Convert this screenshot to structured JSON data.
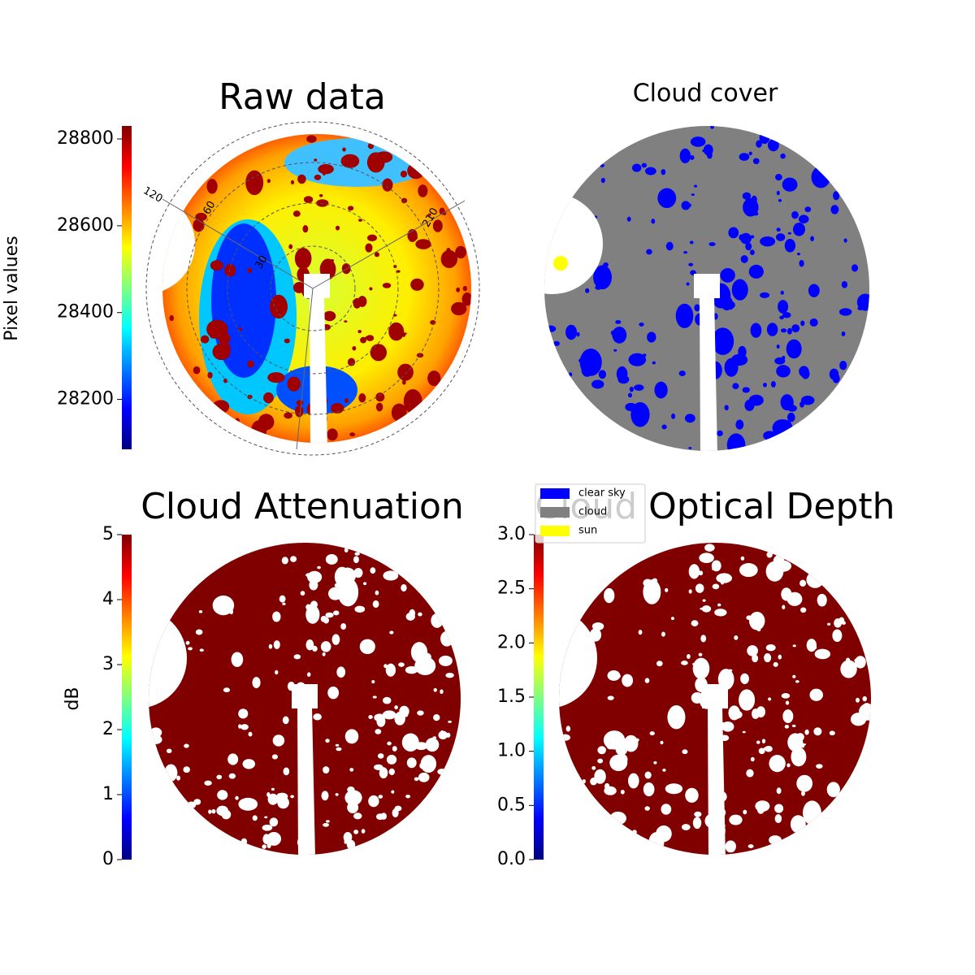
{
  "chart_data": [
    {
      "type": "image",
      "title": "Raw data",
      "colorbar_label": "Pixel values",
      "colormap": "jet",
      "ylim": [
        28085,
        28830
      ],
      "yticks": [
        28200,
        28400,
        28600,
        28800
      ],
      "polar_labels": [
        "120",
        "60",
        "30",
        "210"
      ]
    },
    {
      "type": "image",
      "title": "Cloud cover",
      "legend": [
        {
          "name": "clear sky",
          "color": "#0000ff"
        },
        {
          "name": "cloud",
          "color": "#808080"
        },
        {
          "name": "sun",
          "color": "#ffff00"
        }
      ]
    },
    {
      "type": "image",
      "title": "Cloud Attenuation",
      "colorbar_label": "dB",
      "colormap": "jet",
      "ylim": [
        0,
        5
      ],
      "yticks": [
        0,
        1,
        2,
        3,
        4,
        5
      ]
    },
    {
      "type": "image",
      "title": "Cloud Optical Depth",
      "colormap": "jet",
      "ylim": [
        0,
        3
      ],
      "yticks": [
        {
          "value": 0,
          "label": "0.0"
        },
        {
          "value": 0.5,
          "label": "0.5"
        },
        {
          "value": 1,
          "label": "1.0"
        },
        {
          "value": 1.5,
          "label": "1.5"
        },
        {
          "value": 2,
          "label": "2.0"
        },
        {
          "value": 2.5,
          "label": "2.5"
        },
        {
          "value": 3,
          "label": "3.0"
        }
      ]
    }
  ]
}
